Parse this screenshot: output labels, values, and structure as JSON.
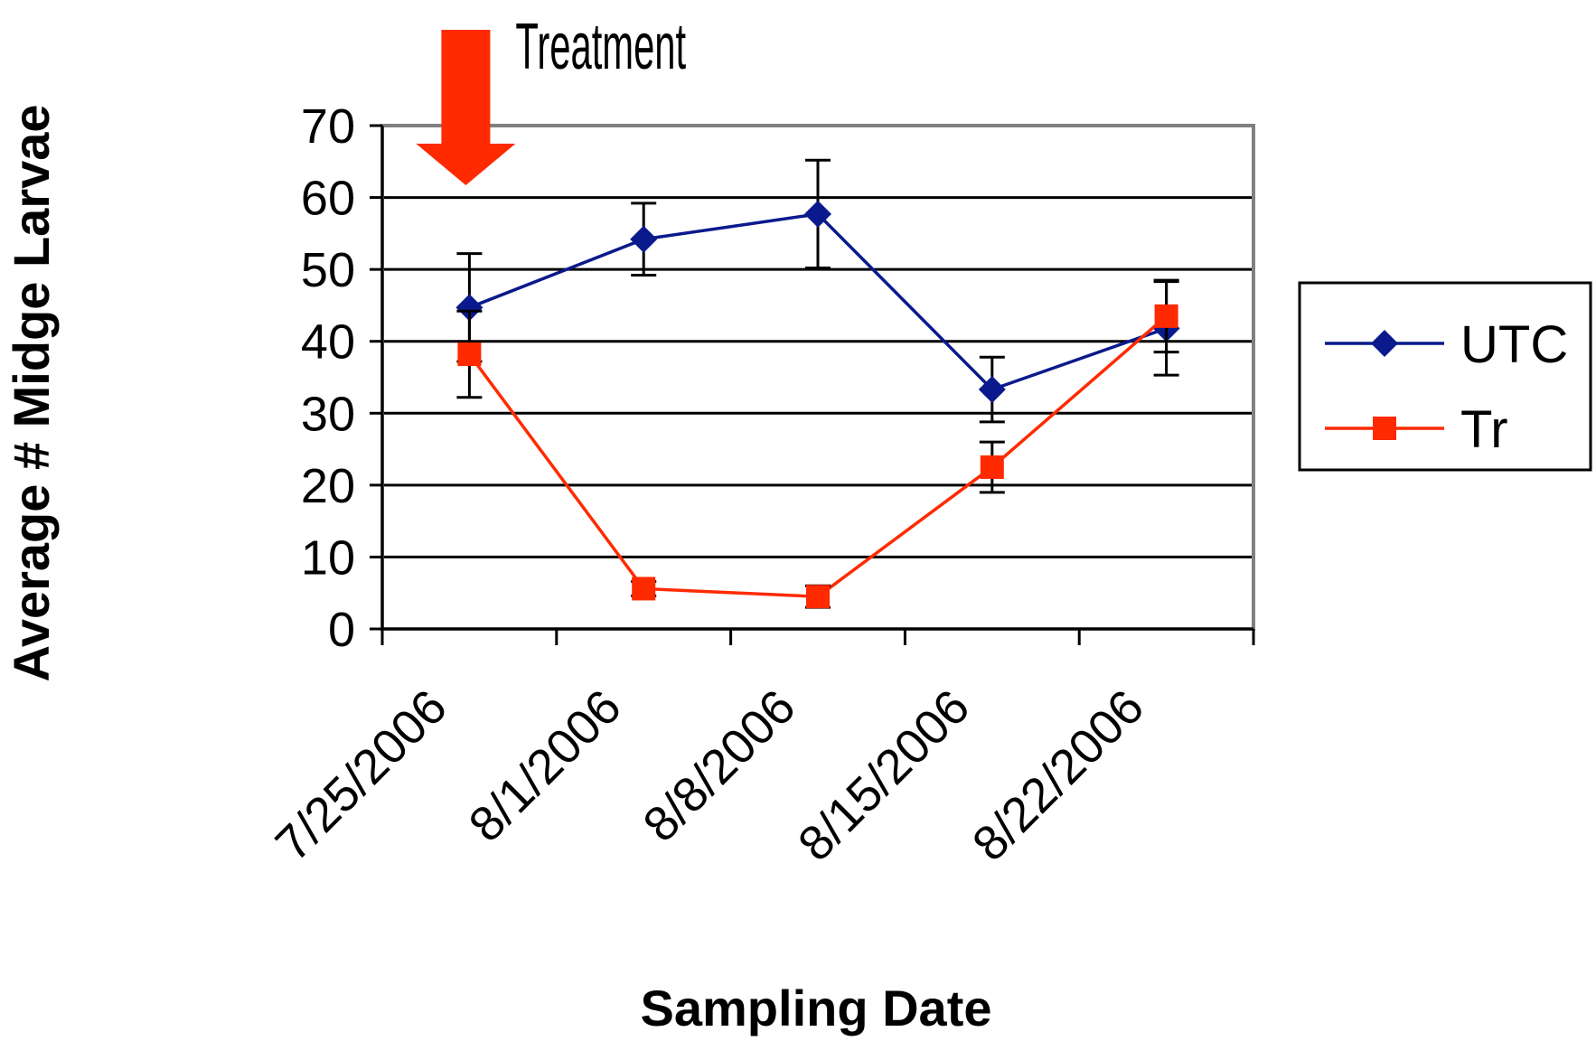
{
  "chart_data": {
    "type": "line",
    "ylabel": "Average # Midge Larvae",
    "xlabel": "Sampling Date",
    "categories": [
      "7/25/2006",
      "8/1/2006",
      "8/8/2006",
      "8/15/2006",
      "8/22/2006"
    ],
    "ylim": [
      0,
      70
    ],
    "yticks": [
      "0",
      "10",
      "20",
      "30",
      "40",
      "50",
      "60",
      "70"
    ],
    "grid": true,
    "legend": "right",
    "series": [
      {
        "name": "UTC",
        "color": "#0a1a8c",
        "marker": "diamond",
        "values": [
          44.7,
          54.2,
          57.7,
          33.3,
          41.8
        ],
        "error": [
          7.5,
          5.0,
          7.5,
          4.5,
          6.5
        ]
      },
      {
        "name": "Tr",
        "color": "#ff2a00",
        "marker": "square",
        "values": [
          38.2,
          5.6,
          4.5,
          22.5,
          43.5
        ],
        "error": [
          6.0,
          1.0,
          1.5,
          3.5,
          5.0
        ]
      }
    ],
    "annotations": [
      {
        "text": "Treatment",
        "category": "7/25/2006",
        "color": "#ff2a00"
      }
    ]
  }
}
